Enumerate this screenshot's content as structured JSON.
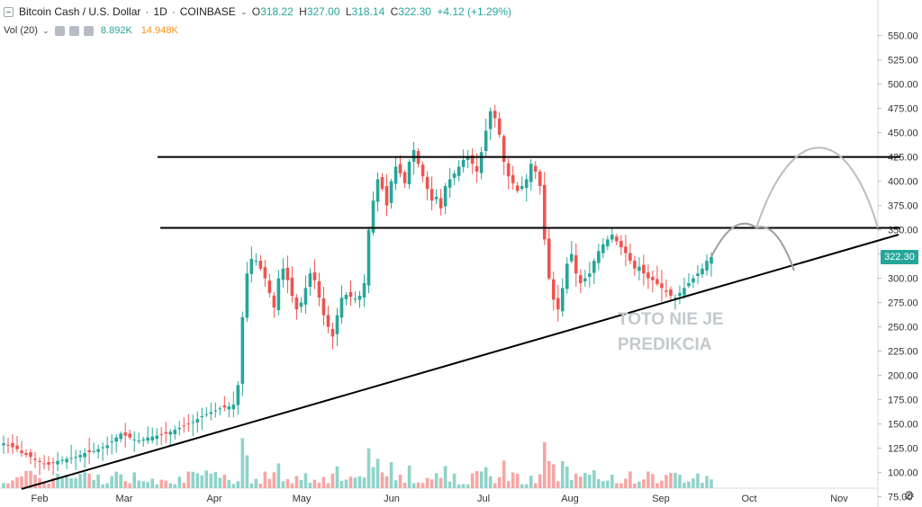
{
  "header": {
    "symbol": "Bitcoin Cash / U.S. Dollar",
    "interval": "1D",
    "exchange": "COINBASE",
    "open_label": "O",
    "open": "318.22",
    "high_label": "H",
    "high": "327.00",
    "low_label": "L",
    "low": "318.14",
    "close_label": "C",
    "close": "322.30",
    "change": "+4.12 (+1.29%)"
  },
  "volume_indicator": {
    "label": "Vol (20)",
    "value1": "8.892K",
    "value2": "14.948K"
  },
  "last_price": "322.30",
  "annotation": [
    "TOTO NIE JE",
    "PREDIKCIA"
  ],
  "colors": {
    "up": "#26a69a",
    "down": "#ef5350",
    "up_vol": "#8fd3c9",
    "down_vol": "#f5a6a4",
    "projection": "#9e9e9e",
    "line": "#000000"
  },
  "chart_data": {
    "type": "candlestick",
    "series": [
      {
        "name": "BCHUSD",
        "interval": "1D"
      }
    ],
    "y_ticks": [
      "75.00",
      "100.00",
      "125.00",
      "150.00",
      "175.00",
      "200.00",
      "225.00",
      "250.00",
      "275.00",
      "300.00",
      "325.00",
      "350.00",
      "375.00",
      "400.00",
      "425.00",
      "450.00",
      "475.00",
      "500.00",
      "525.00",
      "550.00"
    ],
    "x_ticks": [
      "Feb",
      "Mar",
      "Apr",
      "May",
      "Jun",
      "Jul",
      "Aug",
      "Sep",
      "Oct",
      "Nov"
    ],
    "ylim": [
      65,
      560
    ],
    "candles_close": [
      130,
      128,
      126,
      124,
      120,
      118,
      116,
      113,
      111,
      109,
      108,
      110,
      112,
      113,
      114,
      115,
      116,
      118,
      120,
      121,
      122,
      124,
      126,
      128,
      132,
      136,
      140,
      138,
      136,
      134,
      133,
      134,
      136,
      137,
      138,
      139,
      140,
      142,
      144,
      146,
      148,
      150,
      152,
      155,
      158,
      160,
      162,
      164,
      166,
      167,
      168,
      170,
      190,
      260,
      305,
      320,
      318,
      310,
      300,
      285,
      270,
      300,
      310,
      298,
      282,
      268,
      275,
      290,
      305,
      298,
      280,
      262,
      250,
      240,
      262,
      280,
      283,
      281,
      279,
      282,
      295,
      350,
      380,
      402,
      392,
      375,
      400,
      415,
      408,
      398,
      420,
      432,
      418,
      405,
      392,
      380,
      384,
      372,
      395,
      402,
      408,
      415,
      422,
      425,
      418,
      410,
      430,
      452,
      472,
      465,
      448,
      420,
      405,
      398,
      390,
      395,
      402,
      418,
      410,
      395,
      340,
      300,
      278,
      268,
      290,
      315,
      325,
      305,
      295,
      300,
      305,
      318,
      328,
      335,
      340,
      345,
      338,
      332,
      326,
      318,
      310,
      312,
      305,
      300,
      298,
      294,
      290,
      286,
      282,
      280,
      285,
      290,
      295,
      300,
      305,
      310,
      318,
      322
    ],
    "volume_note": "volume bars beneath price, mirroring candle colors",
    "horizontal_levels": [
      425,
      352
    ],
    "trendline": {
      "from": [
        "Jan 25",
        83
      ],
      "to": [
        "Nov 20",
        345
      ]
    },
    "projection_paths": [
      {
        "desc": "rise to resistance then to top level and back to support",
        "points": [
          [
            0,
            322
          ],
          [
            1,
            352
          ],
          [
            2,
            425
          ],
          [
            3,
            352
          ]
        ]
      },
      {
        "desc": "alternate path down to trendline",
        "points": [
          [
            0,
            322
          ],
          [
            1,
            352
          ],
          [
            2,
            308
          ]
        ]
      }
    ]
  }
}
